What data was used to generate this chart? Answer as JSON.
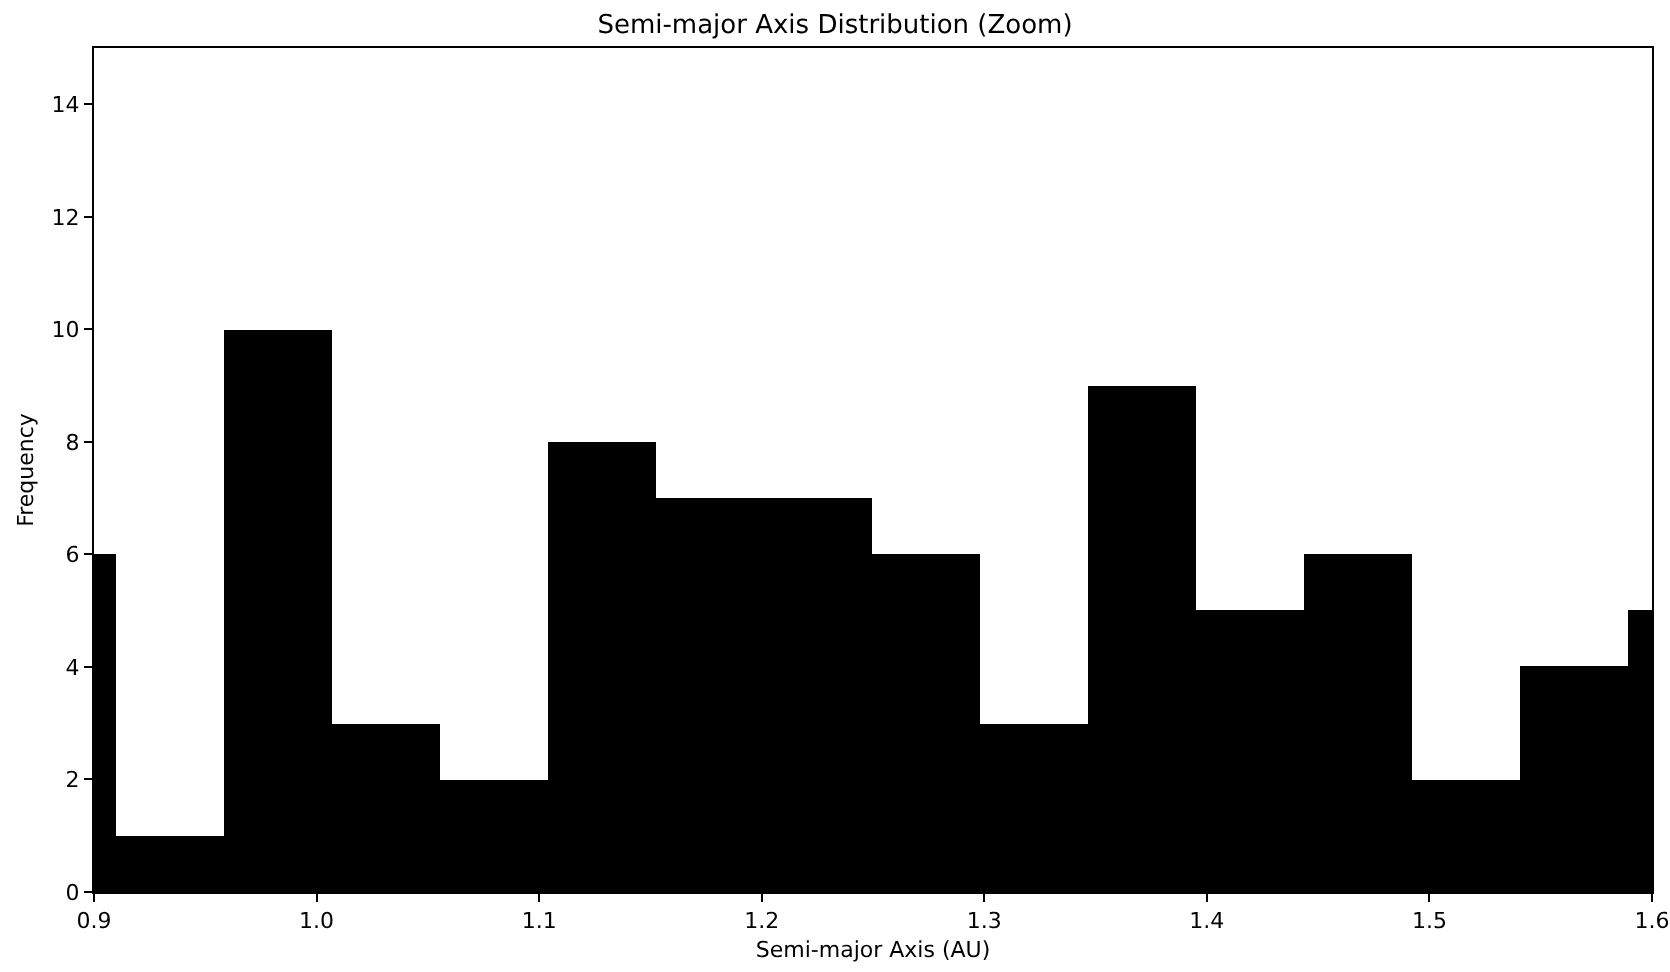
{
  "chart_data": {
    "type": "histogram",
    "title": "Semi-major Axis Distribution (Zoom)",
    "xlabel": "Semi-major Axis (AU)",
    "ylabel": "Frequency",
    "bins": [
      0.9,
      0.91,
      0.9585,
      1.007,
      1.0555,
      1.104,
      1.1525,
      1.201,
      1.2495,
      1.298,
      1.3465,
      1.395,
      1.4435,
      1.492,
      1.5405,
      1.589,
      1.6
    ],
    "values": [
      6,
      1,
      10,
      3,
      2,
      8,
      7,
      7,
      6,
      3,
      9,
      5,
      6,
      2,
      4,
      5
    ],
    "color": "#000000",
    "xlim": [
      0.9,
      1.6
    ],
    "xticks": [
      0.9,
      {
        "value": 1,
        "label": "1.0"
      },
      1.1,
      1.2,
      1.3,
      1.4,
      1.5,
      1.6
    ],
    "ylim": [
      0,
      15
    ],
    "yticks": [
      0,
      2,
      4,
      6,
      8,
      10,
      12,
      14
    ],
    "grid": false
  }
}
